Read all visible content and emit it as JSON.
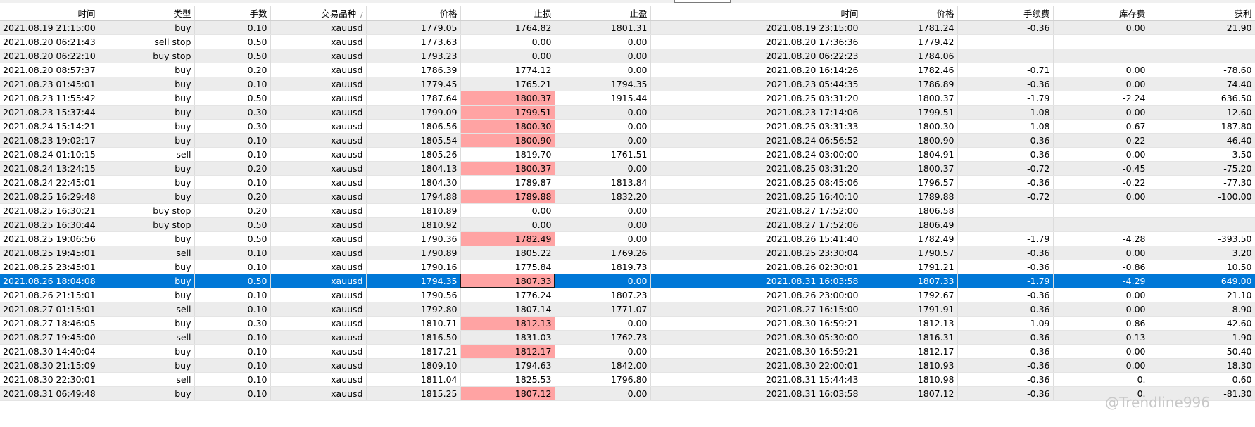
{
  "columns": [
    "时间",
    "类型",
    "手数",
    "交易品种",
    "价格",
    "止损",
    "止盈",
    "时间",
    "价格",
    "手续费",
    "库存费",
    "获利"
  ],
  "rows": [
    {
      "open_time": "2021.08.19 21:15:00",
      "type": "buy",
      "lots": "0.10",
      "symbol": "xauusd",
      "price": "1779.05",
      "sl": "1764.82",
      "tp": "1801.31",
      "close_time": "2021.08.19 23:15:00",
      "close_price": "1781.24",
      "commission": "-0.36",
      "swap": "0.00",
      "profit": "21.90",
      "sl_hit": false
    },
    {
      "open_time": "2021.08.20 06:21:43",
      "type": "sell stop",
      "lots": "0.50",
      "symbol": "xauusd",
      "price": "1773.63",
      "sl": "0.00",
      "tp": "0.00",
      "close_time": "2021.08.20 17:36:36",
      "close_price": "1779.42",
      "commission": "",
      "swap": "",
      "profit": "",
      "sl_hit": false
    },
    {
      "open_time": "2021.08.20 06:22:10",
      "type": "buy stop",
      "lots": "0.50",
      "symbol": "xauusd",
      "price": "1793.23",
      "sl": "0.00",
      "tp": "0.00",
      "close_time": "2021.08.20 06:22:23",
      "close_price": "1784.06",
      "commission": "",
      "swap": "",
      "profit": "",
      "sl_hit": false
    },
    {
      "open_time": "2021.08.20 08:57:37",
      "type": "buy",
      "lots": "0.20",
      "symbol": "xauusd",
      "price": "1786.39",
      "sl": "1774.12",
      "tp": "0.00",
      "close_time": "2021.08.20 16:14:26",
      "close_price": "1782.46",
      "commission": "-0.71",
      "swap": "0.00",
      "profit": "-78.60",
      "sl_hit": false
    },
    {
      "open_time": "2021.08.23 01:45:01",
      "type": "buy",
      "lots": "0.10",
      "symbol": "xauusd",
      "price": "1779.45",
      "sl": "1765.21",
      "tp": "1794.35",
      "close_time": "2021.08.23 05:44:35",
      "close_price": "1786.89",
      "commission": "-0.36",
      "swap": "0.00",
      "profit": "74.40",
      "sl_hit": false
    },
    {
      "open_time": "2021.08.23 11:55:42",
      "type": "buy",
      "lots": "0.50",
      "symbol": "xauusd",
      "price": "1787.64",
      "sl": "1800.37",
      "tp": "1915.44",
      "close_time": "2021.08.25 03:31:20",
      "close_price": "1800.37",
      "commission": "-1.79",
      "swap": "-2.24",
      "profit": "636.50",
      "sl_hit": true
    },
    {
      "open_time": "2021.08.23 15:37:44",
      "type": "buy",
      "lots": "0.30",
      "symbol": "xauusd",
      "price": "1799.09",
      "sl": "1799.51",
      "tp": "0.00",
      "close_time": "2021.08.23 17:14:06",
      "close_price": "1799.51",
      "commission": "-1.08",
      "swap": "0.00",
      "profit": "12.60",
      "sl_hit": true
    },
    {
      "open_time": "2021.08.24 15:14:21",
      "type": "buy",
      "lots": "0.30",
      "symbol": "xauusd",
      "price": "1806.56",
      "sl": "1800.30",
      "tp": "0.00",
      "close_time": "2021.08.25 03:31:33",
      "close_price": "1800.30",
      "commission": "-1.08",
      "swap": "-0.67",
      "profit": "-187.80",
      "sl_hit": true
    },
    {
      "open_time": "2021.08.23 19:02:17",
      "type": "buy",
      "lots": "0.10",
      "symbol": "xauusd",
      "price": "1805.54",
      "sl": "1800.90",
      "tp": "0.00",
      "close_time": "2021.08.24 06:56:52",
      "close_price": "1800.90",
      "commission": "-0.36",
      "swap": "-0.22",
      "profit": "-46.40",
      "sl_hit": true
    },
    {
      "open_time": "2021.08.24 01:10:15",
      "type": "sell",
      "lots": "0.10",
      "symbol": "xauusd",
      "price": "1805.26",
      "sl": "1819.70",
      "tp": "1761.51",
      "close_time": "2021.08.24 03:00:00",
      "close_price": "1804.91",
      "commission": "-0.36",
      "swap": "0.00",
      "profit": "3.50",
      "sl_hit": false
    },
    {
      "open_time": "2021.08.24 13:24:15",
      "type": "buy",
      "lots": "0.20",
      "symbol": "xauusd",
      "price": "1804.13",
      "sl": "1800.37",
      "tp": "0.00",
      "close_time": "2021.08.25 03:31:20",
      "close_price": "1800.37",
      "commission": "-0.72",
      "swap": "-0.45",
      "profit": "-75.20",
      "sl_hit": true
    },
    {
      "open_time": "2021.08.24 22:45:01",
      "type": "buy",
      "lots": "0.10",
      "symbol": "xauusd",
      "price": "1804.30",
      "sl": "1789.87",
      "tp": "1813.84",
      "close_time": "2021.08.25 08:45:06",
      "close_price": "1796.57",
      "commission": "-0.36",
      "swap": "-0.22",
      "profit": "-77.30",
      "sl_hit": false
    },
    {
      "open_time": "2021.08.25 16:29:48",
      "type": "buy",
      "lots": "0.20",
      "symbol": "xauusd",
      "price": "1794.88",
      "sl": "1789.88",
      "tp": "1832.20",
      "close_time": "2021.08.25 16:40:10",
      "close_price": "1789.88",
      "commission": "-0.72",
      "swap": "0.00",
      "profit": "-100.00",
      "sl_hit": true
    },
    {
      "open_time": "2021.08.25 16:30:21",
      "type": "buy stop",
      "lots": "0.20",
      "symbol": "xauusd",
      "price": "1810.89",
      "sl": "0.00",
      "tp": "0.00",
      "close_time": "2021.08.27 17:52:00",
      "close_price": "1806.58",
      "commission": "",
      "swap": "",
      "profit": "",
      "sl_hit": false
    },
    {
      "open_time": "2021.08.25 16:30:44",
      "type": "buy stop",
      "lots": "0.50",
      "symbol": "xauusd",
      "price": "1810.92",
      "sl": "0.00",
      "tp": "0.00",
      "close_time": "2021.08.27 17:52:06",
      "close_price": "1806.49",
      "commission": "",
      "swap": "",
      "profit": "",
      "sl_hit": false
    },
    {
      "open_time": "2021.08.25 19:06:56",
      "type": "buy",
      "lots": "0.50",
      "symbol": "xauusd",
      "price": "1790.36",
      "sl": "1782.49",
      "tp": "0.00",
      "close_time": "2021.08.26 15:41:40",
      "close_price": "1782.49",
      "commission": "-1.79",
      "swap": "-4.28",
      "profit": "-393.50",
      "sl_hit": true
    },
    {
      "open_time": "2021.08.25 19:45:01",
      "type": "sell",
      "lots": "0.10",
      "symbol": "xauusd",
      "price": "1790.89",
      "sl": "1805.22",
      "tp": "1769.26",
      "close_time": "2021.08.25 23:30:04",
      "close_price": "1790.57",
      "commission": "-0.36",
      "swap": "0.00",
      "profit": "3.20",
      "sl_hit": false
    },
    {
      "open_time": "2021.08.25 23:45:01",
      "type": "buy",
      "lots": "0.10",
      "symbol": "xauusd",
      "price": "1790.16",
      "sl": "1775.84",
      "tp": "1819.73",
      "close_time": "2021.08.26 02:30:01",
      "close_price": "1791.21",
      "commission": "-0.36",
      "swap": "-0.86",
      "profit": "10.50",
      "sl_hit": false
    },
    {
      "open_time": "2021.08.26 18:04:08",
      "type": "buy",
      "lots": "0.50",
      "symbol": "xauusd",
      "price": "1794.35",
      "sl": "1807.33",
      "tp": "0.00",
      "close_time": "2021.08.31 16:03:58",
      "close_price": "1807.33",
      "commission": "-1.79",
      "swap": "-4.29",
      "profit": "649.00",
      "sl_hit": true,
      "selected": true
    },
    {
      "open_time": "2021.08.26 21:15:01",
      "type": "buy",
      "lots": "0.10",
      "symbol": "xauusd",
      "price": "1790.56",
      "sl": "1776.24",
      "tp": "1807.23",
      "close_time": "2021.08.26 23:00:00",
      "close_price": "1792.67",
      "commission": "-0.36",
      "swap": "0.00",
      "profit": "21.10",
      "sl_hit": false
    },
    {
      "open_time": "2021.08.27 01:15:01",
      "type": "sell",
      "lots": "0.10",
      "symbol": "xauusd",
      "price": "1792.80",
      "sl": "1807.14",
      "tp": "1771.07",
      "close_time": "2021.08.27 16:15:00",
      "close_price": "1791.91",
      "commission": "-0.36",
      "swap": "0.00",
      "profit": "8.90",
      "sl_hit": false
    },
    {
      "open_time": "2021.08.27 18:46:05",
      "type": "buy",
      "lots": "0.30",
      "symbol": "xauusd",
      "price": "1810.71",
      "sl": "1812.13",
      "tp": "0.00",
      "close_time": "2021.08.30 16:59:21",
      "close_price": "1812.13",
      "commission": "-1.09",
      "swap": "-0.86",
      "profit": "42.60",
      "sl_hit": true
    },
    {
      "open_time": "2021.08.27 19:45:00",
      "type": "sell",
      "lots": "0.10",
      "symbol": "xauusd",
      "price": "1816.50",
      "sl": "1831.03",
      "tp": "1762.73",
      "close_time": "2021.08.30 05:30:00",
      "close_price": "1816.31",
      "commission": "-0.36",
      "swap": "-0.13",
      "profit": "1.90",
      "sl_hit": false
    },
    {
      "open_time": "2021.08.30 14:40:04",
      "type": "buy",
      "lots": "0.10",
      "symbol": "xauusd",
      "price": "1817.21",
      "sl": "1812.17",
      "tp": "0.00",
      "close_time": "2021.08.30 16:59:21",
      "close_price": "1812.17",
      "commission": "-0.36",
      "swap": "0.00",
      "profit": "-50.40",
      "sl_hit": true
    },
    {
      "open_time": "2021.08.30 21:15:09",
      "type": "buy",
      "lots": "0.10",
      "symbol": "xauusd",
      "price": "1809.10",
      "sl": "1794.63",
      "tp": "1842.00",
      "close_time": "2021.08.30 22:00:01",
      "close_price": "1810.93",
      "commission": "-0.36",
      "swap": "0.00",
      "profit": "18.30",
      "sl_hit": false
    },
    {
      "open_time": "2021.08.30 22:30:01",
      "type": "sell",
      "lots": "0.10",
      "symbol": "xauusd",
      "price": "1811.04",
      "sl": "1825.53",
      "tp": "1796.80",
      "close_time": "2021.08.31 15:44:43",
      "close_price": "1810.98",
      "commission": "-0.36",
      "swap": "0.",
      "profit": "0.60",
      "sl_hit": false
    },
    {
      "open_time": "2021.08.31 06:49:48",
      "type": "buy",
      "lots": "0.10",
      "symbol": "xauusd",
      "price": "1815.25",
      "sl": "1807.12",
      "tp": "0.00",
      "close_time": "2021.08.31 16:03:58",
      "close_price": "1807.12",
      "commission": "-0.36",
      "swap": "0.",
      "profit": "-81.30",
      "sl_hit": true
    }
  ],
  "colors": {
    "row_odd": "#ececec",
    "row_even": "#ffffff",
    "selected": "#0078d7",
    "sl_hit": "#ffa3a3"
  },
  "watermark": "@Trendline996"
}
